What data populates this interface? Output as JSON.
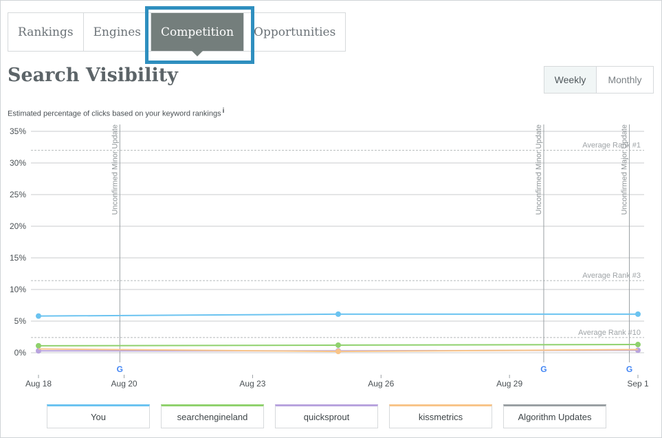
{
  "tabs": [
    {
      "label": "Rankings",
      "active": false
    },
    {
      "label": "Engines",
      "active": false
    },
    {
      "label": "Competition",
      "active": true
    },
    {
      "label": "Opportunities",
      "active": false
    }
  ],
  "header": {
    "title": "Search Visibility",
    "subtitle": "Estimated percentage of clicks based on your keyword rankings",
    "info_marker": "i"
  },
  "period_toggle": {
    "options": [
      "Weekly",
      "Monthly"
    ],
    "selected": "Weekly"
  },
  "chart_data": {
    "type": "line",
    "x_tick_labels": [
      "Aug 18",
      "Aug 20",
      "Aug 23",
      "Aug 26",
      "Aug 29",
      "Sep 1"
    ],
    "x_ticks": [
      18,
      20,
      23,
      26,
      29,
      32
    ],
    "xlim": [
      18,
      32
    ],
    "y_tick_labels": [
      "35%",
      "30%",
      "25%",
      "20%",
      "15%",
      "10%",
      "5%",
      "0%"
    ],
    "ylim": [
      0,
      35
    ],
    "y_ticks": [
      0,
      5,
      10,
      15,
      20,
      25,
      30,
      35
    ],
    "grid": true,
    "series": [
      {
        "name": "You",
        "color": "#6bc3f0",
        "x": [
          18,
          25,
          32
        ],
        "y": [
          5.8,
          6.1,
          6.1
        ],
        "markers": true
      },
      {
        "name": "searchengineland",
        "color": "#8fd16d",
        "x": [
          18,
          25,
          32
        ],
        "y": [
          1.1,
          1.2,
          1.3
        ],
        "markers": true
      },
      {
        "name": "quicksprout",
        "color": "#b8a3de",
        "x": [
          18,
          25,
          32
        ],
        "y": [
          0.3,
          0.3,
          0.4
        ],
        "markers": true
      },
      {
        "name": "kissmetrics",
        "color": "#f8c489",
        "x": [
          18,
          25,
          32
        ],
        "y": [
          0.6,
          0.2,
          0.5
        ],
        "markers": false,
        "marker_index": [
          1
        ]
      }
    ],
    "reference_lines": [
      {
        "label": "Average Rank #1",
        "y": 32
      },
      {
        "label": "Average Rank #3",
        "y": 11.4
      },
      {
        "label": "Average Rank #10",
        "y": 2.4
      }
    ],
    "events": [
      {
        "label": "Unconfirmed Minor Update",
        "x": 19.9,
        "icon": "google-icon"
      },
      {
        "label": "Unconfirmed Minor Update",
        "x": 29.8,
        "icon": "google-icon"
      },
      {
        "label": "Unconfirmed Major Update",
        "x": 31.8,
        "icon": "google-icon"
      }
    ]
  },
  "legend": [
    {
      "label": "You",
      "color": "#6bc3f0"
    },
    {
      "label": "searchengineland",
      "color": "#8fd16d"
    },
    {
      "label": "quicksprout",
      "color": "#b8a3de"
    },
    {
      "label": "kissmetrics",
      "color": "#f8c489"
    },
    {
      "label": "Algorithm Updates",
      "color": "#9aa0a3"
    }
  ]
}
